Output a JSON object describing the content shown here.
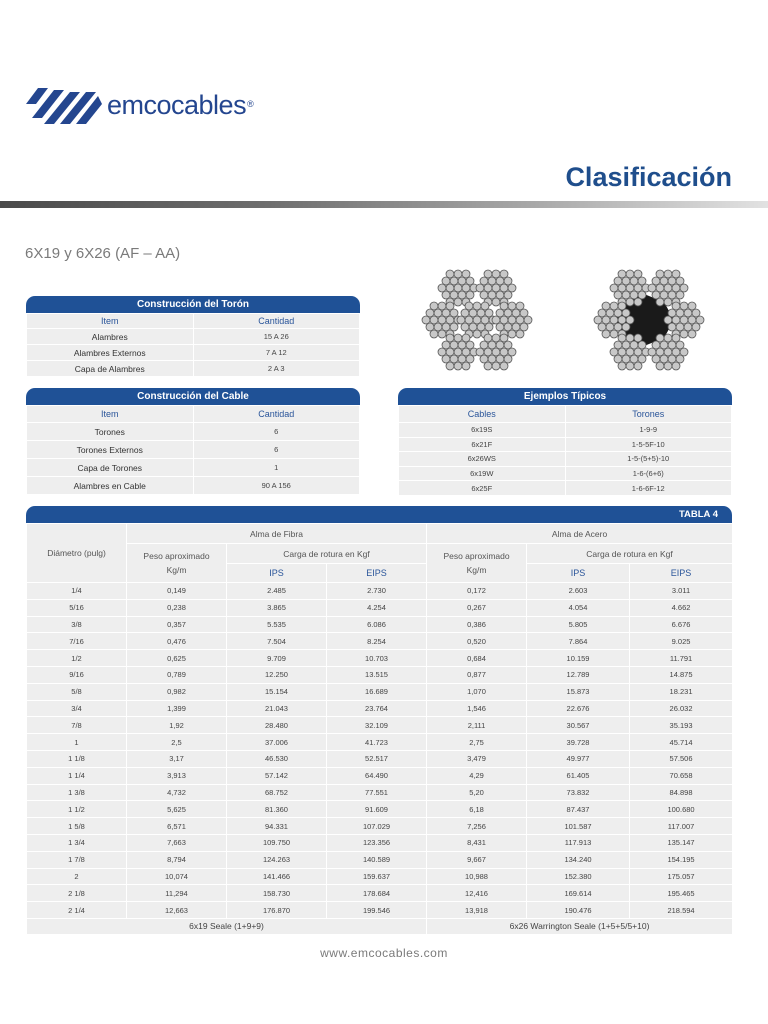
{
  "brand": {
    "name": "emcocables",
    "registered_mark": "®",
    "color": "#24468f"
  },
  "header": {
    "title": "Clasificación",
    "title_color": "#1f4e8c"
  },
  "subtitle": "6X19 y 6X26 (AF – AA)",
  "toron_table": {
    "title": "Construcción del Torón",
    "columns": [
      "Item",
      "Cantidad"
    ],
    "rows": [
      {
        "item": "Alambres",
        "qty": "15 A 26"
      },
      {
        "item": "Alambres Externos",
        "qty": "7 A 12"
      },
      {
        "item": "Capa de Alambres",
        "qty": "2 A 3"
      }
    ]
  },
  "cable_table": {
    "title": "Construcción del Cable",
    "columns": [
      "Item",
      "Cantidad"
    ],
    "rows": [
      {
        "item": "Torones",
        "qty": "6"
      },
      {
        "item": "Torones Externos",
        "qty": "6"
      },
      {
        "item": "Capa de Torones",
        "qty": "1"
      },
      {
        "item": "Alambres en Cable",
        "qty": "90 A 156"
      }
    ]
  },
  "examples_table": {
    "title": "Ejemplos Típicos",
    "columns": [
      "Cables",
      "Torones"
    ],
    "rows": [
      {
        "cable": "6x19S",
        "toron": "1-9-9"
      },
      {
        "cable": "6x21F",
        "toron": "1-5-5F-10"
      },
      {
        "cable": "6x26WS",
        "toron": "1-5-(5+5)-10"
      },
      {
        "cable": "6x19W",
        "toron": "1-6-(6+6)"
      },
      {
        "cable": "6x25F",
        "toron": "1-6-6F-12"
      }
    ]
  },
  "figures": {
    "left": "fiber-core-cross-section",
    "right": "steel-core-cross-section"
  },
  "main_table": {
    "tag": "TABLA 4",
    "diameter_header": "Diámetro (pulg)",
    "group_fibra": "Alma de Fibra",
    "group_acero": "Alma de Acero",
    "weight_header": "Peso aproximado Kg/m",
    "load_header": "Carga  de rotura en Kgf",
    "ips": "IPS",
    "eips": "EIPS",
    "rows": [
      {
        "d": "1/4",
        "fw": "0,149",
        "fips": "2.485",
        "feips": "2.730",
        "aw": "0,172",
        "aips": "2.603",
        "aeips": "3.011"
      },
      {
        "d": "5/16",
        "fw": "0,238",
        "fips": "3.865",
        "feips": "4.254",
        "aw": "0,267",
        "aips": "4.054",
        "aeips": "4.662"
      },
      {
        "d": "3/8",
        "fw": "0,357",
        "fips": "5.535",
        "feips": "6.086",
        "aw": "0,386",
        "aips": "5.805",
        "aeips": "6.676"
      },
      {
        "d": "7/16",
        "fw": "0,476",
        "fips": "7.504",
        "feips": "8.254",
        "aw": "0,520",
        "aips": "7.864",
        "aeips": "9.025"
      },
      {
        "d": "1/2",
        "fw": "0,625",
        "fips": "9.709",
        "feips": "10.703",
        "aw": "0,684",
        "aips": "10.159",
        "aeips": "11.791"
      },
      {
        "d": "9/16",
        "fw": "0,789",
        "fips": "12.250",
        "feips": "13.515",
        "aw": "0,877",
        "aips": "12.789",
        "aeips": "14.875"
      },
      {
        "d": "5/8",
        "fw": "0,982",
        "fips": "15.154",
        "feips": "16.689",
        "aw": "1,070",
        "aips": "15.873",
        "aeips": "18.231"
      },
      {
        "d": "3/4",
        "fw": "1,399",
        "fips": "21.043",
        "feips": "23.764",
        "aw": "1,546",
        "aips": "22.676",
        "aeips": "26.032"
      },
      {
        "d": "7/8",
        "fw": "1,92",
        "fips": "28.480",
        "feips": "32.109",
        "aw": "2,111",
        "aips": "30.567",
        "aeips": "35.193"
      },
      {
        "d": "1",
        "fw": "2,5",
        "fips": "37.006",
        "feips": "41.723",
        "aw": "2,75",
        "aips": "39.728",
        "aeips": "45.714"
      },
      {
        "d": "1 1/8",
        "fw": "3,17",
        "fips": "46.530",
        "feips": "52.517",
        "aw": "3,479",
        "aips": "49.977",
        "aeips": "57.506"
      },
      {
        "d": "1 1/4",
        "fw": "3,913",
        "fips": "57.142",
        "feips": "64.490",
        "aw": "4,29",
        "aips": "61.405",
        "aeips": "70.658"
      },
      {
        "d": "1 3/8",
        "fw": "4,732",
        "fips": "68.752",
        "feips": "77.551",
        "aw": "5,20",
        "aips": "73.832",
        "aeips": "84.898"
      },
      {
        "d": "1 1/2",
        "fw": "5,625",
        "fips": "81.360",
        "feips": "91.609",
        "aw": "6,18",
        "aips": "87.437",
        "aeips": "100.680"
      },
      {
        "d": "1 5/8",
        "fw": "6,571",
        "fips": "94.331",
        "feips": "107.029",
        "aw": "7,256",
        "aips": "101.587",
        "aeips": "117.007"
      },
      {
        "d": "1 3/4",
        "fw": "7,663",
        "fips": "109.750",
        "feips": "123.356",
        "aw": "8,431",
        "aips": "117.913",
        "aeips": "135.147"
      },
      {
        "d": "1 7/8",
        "fw": "8,794",
        "fips": "124.263",
        "feips": "140.589",
        "aw": "9,667",
        "aips": "134.240",
        "aeips": "154.195"
      },
      {
        "d": "2",
        "fw": "10,074",
        "fips": "141.466",
        "feips": "159.637",
        "aw": "10,988",
        "aips": "152.380",
        "aeips": "175.057"
      },
      {
        "d": "2 1/8",
        "fw": "11,294",
        "fips": "158.730",
        "feips": "178.684",
        "aw": "12,416",
        "aips": "169.614",
        "aeips": "195.465"
      },
      {
        "d": "2 1/4",
        "fw": "12,663",
        "fips": "176.870",
        "feips": "199.546",
        "aw": "13,918",
        "aips": "190.476",
        "aeips": "218.594"
      }
    ],
    "footer_fibra": "6x19 Seale (1+9+9)",
    "footer_acero": "6x26 Warrington Seale (1+5+5/5+10)"
  },
  "footer": {
    "url": "www.emcocables.com"
  },
  "colors": {
    "header_blue": "#1f5196",
    "cell_gray": "#eeeeee",
    "header_text_blue": "#2a559a"
  }
}
